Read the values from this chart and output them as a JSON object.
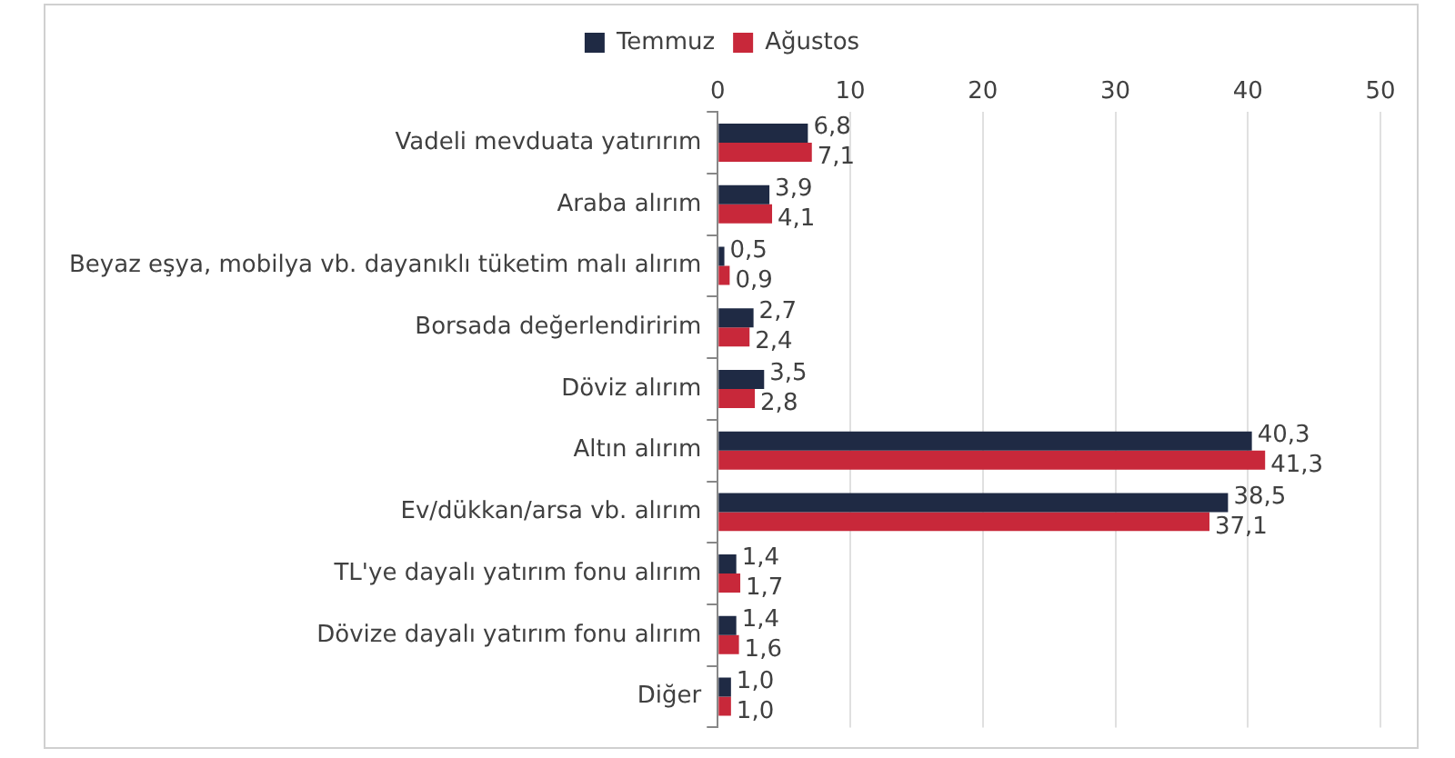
{
  "chart_data": {
    "type": "bar",
    "orientation": "horizontal",
    "categories": [
      "Vadeli mevduata yatırırım",
      "Araba alırım",
      "Beyaz eşya, mobilya vb. dayanıklı tüketim malı alırım",
      "Borsada değerlendiririm",
      "Döviz alırım",
      "Altın alırım",
      "Ev/dükkan/arsa vb. alırım",
      "TL'ye dayalı yatırım fonu alırım",
      "Dövize dayalı yatırım fonu alırım",
      "Diğer"
    ],
    "series": [
      {
        "name": "Temmuz",
        "color": "#1f2a44",
        "values": [
          6.8,
          3.9,
          0.5,
          2.7,
          3.5,
          40.3,
          38.5,
          1.4,
          1.4,
          1.0
        ],
        "value_labels": [
          "6,8",
          "3,9",
          "0,5",
          "2,7",
          "3,5",
          "40,3",
          "38,5",
          "1,4",
          "1,4",
          "1,0"
        ]
      },
      {
        "name": "Ağustos",
        "color": "#c8283a",
        "values": [
          7.1,
          4.1,
          0.9,
          2.4,
          2.8,
          41.3,
          37.1,
          1.7,
          1.6,
          1.0
        ],
        "value_labels": [
          "7,1",
          "4,1",
          "0,9",
          "2,4",
          "2,8",
          "41,3",
          "37,1",
          "1,7",
          "1,6",
          "1,0"
        ]
      }
    ],
    "xlim": [
      0,
      50
    ],
    "xticks": [
      0,
      10,
      20,
      30,
      40,
      50
    ],
    "grid": "x",
    "legend": "top"
  }
}
